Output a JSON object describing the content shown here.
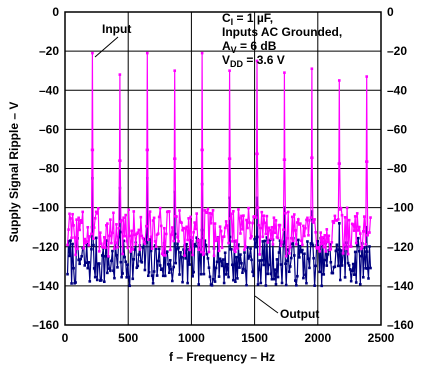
{
  "chart_data": {
    "type": "line",
    "xlabel": "f – Frequency – Hz",
    "ylabel": "Supply Signal Ripple – V",
    "xlim": [
      0,
      2500
    ],
    "ylim": [
      -160,
      0
    ],
    "x_ticks": [
      "0",
      "500",
      "1000",
      "1500",
      "2000",
      "2500"
    ],
    "y_ticks_left": [
      "0",
      "–20",
      "–40",
      "–60",
      "–80",
      "–100",
      "–120",
      "–140",
      "–160"
    ],
    "y_ticks_right": [
      "0",
      "–20",
      "–40",
      "–60",
      "–80",
      "–100",
      "–120",
      "–140",
      "–160"
    ],
    "grid": true,
    "conditions": {
      "line1_main": "C",
      "line1_sub": "I",
      "line1_rest": " = 1 µF,",
      "line2": "Inputs AC Grounded,",
      "line3_main": "A",
      "line3_sub": "V",
      "line3_rest": " = 6 dB",
      "line4_main": "V",
      "line4_sub": "DD",
      "line4_rest": " = 3.6 V"
    },
    "labels": {
      "input": "Input",
      "output": "Output"
    },
    "series": [
      {
        "name": "Input",
        "color": "#ff00ff",
        "peaks": [
          {
            "x": 217,
            "y": -21
          },
          {
            "x": 434,
            "y": -32
          },
          {
            "x": 651,
            "y": -21
          },
          {
            "x": 868,
            "y": -30
          },
          {
            "x": 1085,
            "y": -21
          },
          {
            "x": 1302,
            "y": -30
          },
          {
            "x": 1519,
            "y": -25
          },
          {
            "x": 1736,
            "y": -31
          },
          {
            "x": 1953,
            "y": -29
          },
          {
            "x": 2170,
            "y": -35
          },
          {
            "x": 2387,
            "y": -33
          }
        ],
        "floor_range": [
          -125,
          -100
        ]
      },
      {
        "name": "Output",
        "color": "#000080",
        "peaks": [
          {
            "x": 217,
            "y": -85
          },
          {
            "x": 434,
            "y": -90
          },
          {
            "x": 651,
            "y": -85
          },
          {
            "x": 868,
            "y": -92
          },
          {
            "x": 1085,
            "y": -88
          },
          {
            "x": 1302,
            "y": -95
          },
          {
            "x": 1519,
            "y": -95
          },
          {
            "x": 1736,
            "y": -100
          },
          {
            "x": 1953,
            "y": -102
          },
          {
            "x": 2170,
            "y": -108
          },
          {
            "x": 2387,
            "y": -110
          }
        ],
        "floor_range": [
          -140,
          -115
        ]
      }
    ]
  }
}
